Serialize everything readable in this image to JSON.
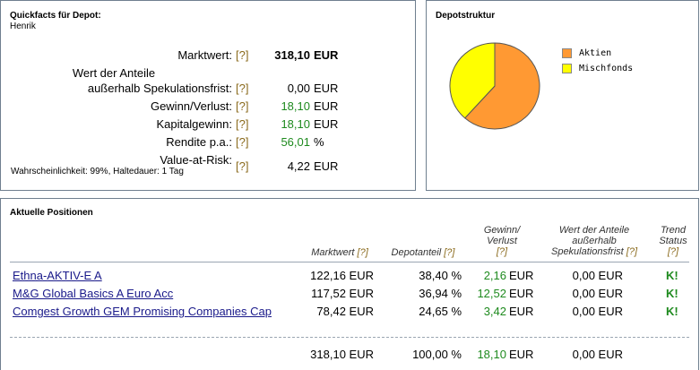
{
  "quickfacts": {
    "title": "Quickfacts für Depot:",
    "user": "Henrik",
    "help": "[?]",
    "rows": [
      {
        "label": "Marktwert:",
        "value": "318,10",
        "unit": "EUR"
      },
      {
        "label_line1": "Wert der Anteile",
        "label_line2": "außerhalb Spekulationsfrist:",
        "value": "0,00",
        "unit": "EUR"
      },
      {
        "label": "Gewinn/Verlust:",
        "value": "18,10",
        "unit": "EUR"
      },
      {
        "label": "Kapitalgewinn:",
        "value": "18,10",
        "unit": "EUR"
      },
      {
        "label": "Rendite p.a.:",
        "value": "56,01",
        "unit": "%"
      },
      {
        "label": "Value-at-Risk:",
        "sublabel": "Wahrscheinlichkeit: 99%, Haltedauer: 1 Tag",
        "value": "4,22",
        "unit": "EUR"
      }
    ]
  },
  "structure": {
    "title": "Depotstruktur",
    "legend": [
      {
        "name": "Aktien",
        "color": "#ff9933"
      },
      {
        "name": "Mischfonds",
        "color": "#ffff00"
      }
    ],
    "chart_data": {
      "type": "pie",
      "categories": [
        "Aktien",
        "Mischfonds"
      ],
      "values": [
        61.6,
        38.4
      ],
      "colors": [
        "#ff9933",
        "#ffff00"
      ],
      "legend_position": "right"
    }
  },
  "positions": {
    "title": "Aktuelle Positionen",
    "help": "[?]",
    "headers": {
      "marktwert": "Marktwert",
      "depotanteil": "Depotanteil",
      "gewinn_line1": "Gewinn/",
      "gewinn_line2": "Verlust",
      "wert_line1": "Wert der Anteile",
      "wert_line2": "außerhalb",
      "wert_line3": "Spekulationsfrist",
      "trend_line1": "Trend",
      "trend_line2": "Status"
    },
    "rows": [
      {
        "name": "Ethna-AKTIV-E A",
        "marktwert": "122,16 EUR",
        "anteil": "38,40 %",
        "gewinn": "2,16",
        "gewinn_unit": "EUR",
        "wert": "0,00 EUR",
        "trend": "K!"
      },
      {
        "name": "M&G Global Basics A Euro Acc",
        "marktwert": "117,52 EUR",
        "anteil": "36,94 %",
        "gewinn": "12,52",
        "gewinn_unit": "EUR",
        "wert": "0,00 EUR",
        "trend": "K!"
      },
      {
        "name": "Comgest Growth GEM Promising Companies Cap",
        "marktwert": "78,42 EUR",
        "anteil": "24,65 %",
        "gewinn": "3,42",
        "gewinn_unit": "EUR",
        "wert": "0,00 EUR",
        "trend": "K!"
      }
    ],
    "total": {
      "marktwert": "318,10 EUR",
      "anteil": "100,00 %",
      "gewinn": "18,10",
      "gewinn_unit": "EUR",
      "wert": "0,00 EUR"
    }
  }
}
